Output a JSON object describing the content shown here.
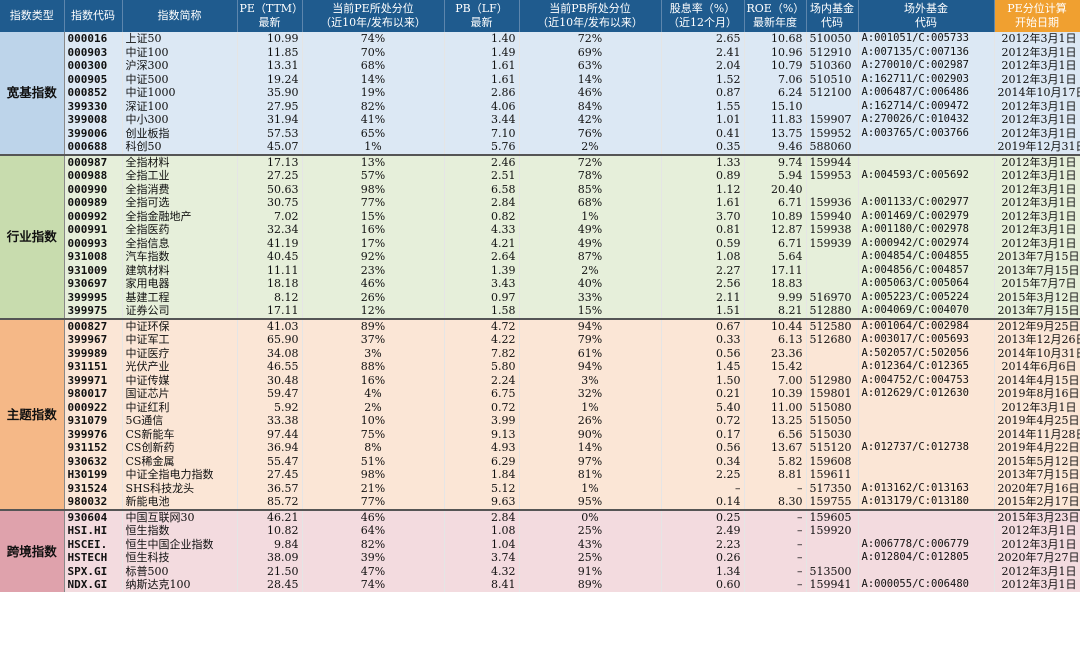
{
  "headers": [
    "指数类型",
    "指数代码",
    "指数简称",
    "PE（TTM）\n最新",
    "当前PE所处分位\n（近10年/发布以来）",
    "PB（LF）\n最新",
    "当前PB所处分位\n（近10年/发布以来）",
    "股息率（%）\n（近12个月）",
    "ROE（%）\n最新年度",
    "场内基金\n代码",
    "场外基金\n代码",
    "PE分位计算\n开始日期"
  ],
  "groups": [
    {
      "name": "宽基指数",
      "rows": [
        [
          "000016",
          "上证50",
          "10.99",
          "74%",
          "1.40",
          "72%",
          "2.65",
          "10.68",
          "510050",
          "A:001051/C:005733",
          "2012年3月1日"
        ],
        [
          "000903",
          "中证100",
          "11.85",
          "70%",
          "1.49",
          "69%",
          "2.41",
          "10.96",
          "512910",
          "A:007135/C:007136",
          "2012年3月1日"
        ],
        [
          "000300",
          "沪深300",
          "13.31",
          "68%",
          "1.61",
          "63%",
          "2.04",
          "10.79",
          "510360",
          "A:270010/C:002987",
          "2012年3月1日"
        ],
        [
          "000905",
          "中证500",
          "19.24",
          "14%",
          "1.61",
          "14%",
          "1.52",
          "7.06",
          "510510",
          "A:162711/C:002903",
          "2012年3月1日"
        ],
        [
          "000852",
          "中证1000",
          "35.90",
          "19%",
          "2.86",
          "46%",
          "0.87",
          "6.24",
          "512100",
          "A:006487/C:006486",
          "2014年10月17日"
        ],
        [
          "399330",
          "深证100",
          "27.95",
          "82%",
          "4.06",
          "84%",
          "1.55",
          "15.10",
          "",
          "A:162714/C:009472",
          "2012年3月1日"
        ],
        [
          "399008",
          "中小300",
          "31.94",
          "41%",
          "3.44",
          "42%",
          "1.01",
          "11.83",
          "159907",
          "A:270026/C:010432",
          "2012年3月1日"
        ],
        [
          "399006",
          "创业板指",
          "57.53",
          "65%",
          "7.10",
          "76%",
          "0.41",
          "13.75",
          "159952",
          "A:003765/C:003766",
          "2012年3月1日"
        ],
        [
          "000688",
          "科创50",
          "45.07",
          "1%",
          "5.76",
          "2%",
          "0.35",
          "9.46",
          "588060",
          "",
          "2019年12月31日"
        ]
      ]
    },
    {
      "name": "行业指数",
      "rows": [
        [
          "000987",
          "全指材料",
          "17.13",
          "13%",
          "2.46",
          "72%",
          "1.33",
          "9.74",
          "159944",
          "",
          "2012年3月1日"
        ],
        [
          "000988",
          "全指工业",
          "27.25",
          "57%",
          "2.51",
          "78%",
          "0.89",
          "5.94",
          "159953",
          "A:004593/C:005692",
          "2012年3月1日"
        ],
        [
          "000990",
          "全指消费",
          "50.63",
          "98%",
          "6.58",
          "85%",
          "1.12",
          "20.40",
          "",
          "",
          "2012年3月1日"
        ],
        [
          "000989",
          "全指可选",
          "30.75",
          "77%",
          "2.84",
          "68%",
          "1.61",
          "6.71",
          "159936",
          "A:001133/C:002977",
          "2012年3月1日"
        ],
        [
          "000992",
          "全指金融地产",
          "7.02",
          "15%",
          "0.82",
          "1%",
          "3.70",
          "10.89",
          "159940",
          "A:001469/C:002979",
          "2012年3月1日"
        ],
        [
          "000991",
          "全指医药",
          "32.34",
          "16%",
          "4.33",
          "49%",
          "0.81",
          "12.87",
          "159938",
          "A:001180/C:002978",
          "2012年3月1日"
        ],
        [
          "000993",
          "全指信息",
          "41.19",
          "17%",
          "4.21",
          "49%",
          "0.59",
          "6.71",
          "159939",
          "A:000942/C:002974",
          "2012年3月1日"
        ],
        [
          "931008",
          "汽车指数",
          "40.45",
          "92%",
          "2.64",
          "87%",
          "1.08",
          "5.64",
          "",
          "A:004854/C:004855",
          "2013年7月15日"
        ],
        [
          "931009",
          "建筑材料",
          "11.11",
          "23%",
          "1.39",
          "2%",
          "2.27",
          "17.11",
          "",
          "A:004856/C:004857",
          "2013年7月15日"
        ],
        [
          "930697",
          "家用电器",
          "18.18",
          "46%",
          "3.43",
          "40%",
          "2.56",
          "18.83",
          "",
          "A:005063/C:005064",
          "2015年7月7日"
        ],
        [
          "399995",
          "基建工程",
          "8.12",
          "26%",
          "0.97",
          "33%",
          "2.11",
          "9.99",
          "516970",
          "A:005223/C:005224",
          "2015年3月12日"
        ],
        [
          "399975",
          "证券公司",
          "17.11",
          "12%",
          "1.58",
          "15%",
          "1.51",
          "8.21",
          "512880",
          "A:004069/C:004070",
          "2013年7月15日"
        ]
      ]
    },
    {
      "name": "主题指数",
      "rows": [
        [
          "000827",
          "中证环保",
          "41.03",
          "89%",
          "4.72",
          "94%",
          "0.67",
          "10.44",
          "512580",
          "A:001064/C:002984",
          "2012年9月25日"
        ],
        [
          "399967",
          "中证军工",
          "65.90",
          "37%",
          "4.22",
          "79%",
          "0.33",
          "6.13",
          "512680",
          "A:003017/C:005693",
          "2013年12月26日"
        ],
        [
          "399989",
          "中证医疗",
          "34.08",
          "3%",
          "7.82",
          "61%",
          "0.56",
          "23.36",
          "",
          "A:502057/C:502056",
          "2014年10月31日"
        ],
        [
          "931151",
          "光伏产业",
          "46.55",
          "88%",
          "5.80",
          "94%",
          "1.45",
          "15.42",
          "",
          "A:012364/C:012365",
          "2014年6月6日"
        ],
        [
          "399971",
          "中证传媒",
          "30.48",
          "16%",
          "2.24",
          "3%",
          "1.50",
          "7.00",
          "512980",
          "A:004752/C:004753",
          "2014年4月15日"
        ],
        [
          "980017",
          "国证芯片",
          "59.47",
          "4%",
          "6.75",
          "32%",
          "0.21",
          "10.39",
          "159801",
          "A:012629/C:012630",
          "2019年8月16日"
        ],
        [
          "000922",
          "中证红利",
          "5.92",
          "2%",
          "0.72",
          "1%",
          "5.40",
          "11.00",
          "515080",
          "",
          "2012年3月1日"
        ],
        [
          "931079",
          "5G通信",
          "33.38",
          "10%",
          "3.99",
          "26%",
          "0.72",
          "13.25",
          "515050",
          "",
          "2019年4月25日"
        ],
        [
          "399976",
          "CS新能车",
          "97.44",
          "75%",
          "9.13",
          "90%",
          "0.17",
          "6.56",
          "515030",
          "",
          "2014年11月28日"
        ],
        [
          "931152",
          "CS创新药",
          "36.94",
          "8%",
          "4.93",
          "14%",
          "0.56",
          "13.67",
          "515120",
          "A:012737/C:012738",
          "2019年4月22日"
        ],
        [
          "930632",
          "CS稀金属",
          "55.47",
          "51%",
          "6.29",
          "97%",
          "0.34",
          "5.82",
          "159608",
          "",
          "2015年5月12日"
        ],
        [
          "H30199",
          "中证全指电力指数",
          "27.45",
          "98%",
          "1.84",
          "81%",
          "2.25",
          "8.81",
          "159611",
          "",
          "2013年7月15日"
        ],
        [
          "931524",
          "SHS科技龙头",
          "36.57",
          "21%",
          "5.12",
          "1%",
          "–",
          "–",
          "517350",
          "A:013162/C:013163",
          "2020年7月16日"
        ],
        [
          "980032",
          "新能电池",
          "85.72",
          "77%",
          "9.63",
          "95%",
          "0.14",
          "8.30",
          "159755",
          "A:013179/C:013180",
          "2015年2月17日"
        ]
      ]
    },
    {
      "name": "跨境指数",
      "rows": [
        [
          "930604",
          "中国互联网30",
          "46.21",
          "46%",
          "2.84",
          "0%",
          "0.25",
          "–",
          "159605",
          "",
          "2015年3月23日"
        ],
        [
          "HSI.HI",
          "恒生指数",
          "10.82",
          "64%",
          "1.08",
          "25%",
          "2.49",
          "–",
          "159920",
          "",
          "2012年3月1日"
        ],
        [
          "HSCEI.",
          "恒生中国企业指数",
          "9.84",
          "82%",
          "1.04",
          "43%",
          "2.23",
          "–",
          "",
          "A:006778/C:006779",
          "2012年3月1日"
        ],
        [
          "HSTECH",
          "恒生科技",
          "38.09",
          "39%",
          "3.74",
          "25%",
          "0.26",
          "–",
          "",
          "A:012804/C:012805",
          "2020年7月27日"
        ],
        [
          "SPX.GI",
          "标普500",
          "21.50",
          "47%",
          "4.32",
          "91%",
          "1.34",
          "–",
          "513500",
          "",
          "2012年3月1日"
        ],
        [
          "NDX.GI",
          "纳斯达克100",
          "28.45",
          "74%",
          "8.41",
          "89%",
          "0.60",
          "–",
          "159941",
          "A:000055/C:006480",
          "2012年3月1日"
        ]
      ]
    }
  ]
}
